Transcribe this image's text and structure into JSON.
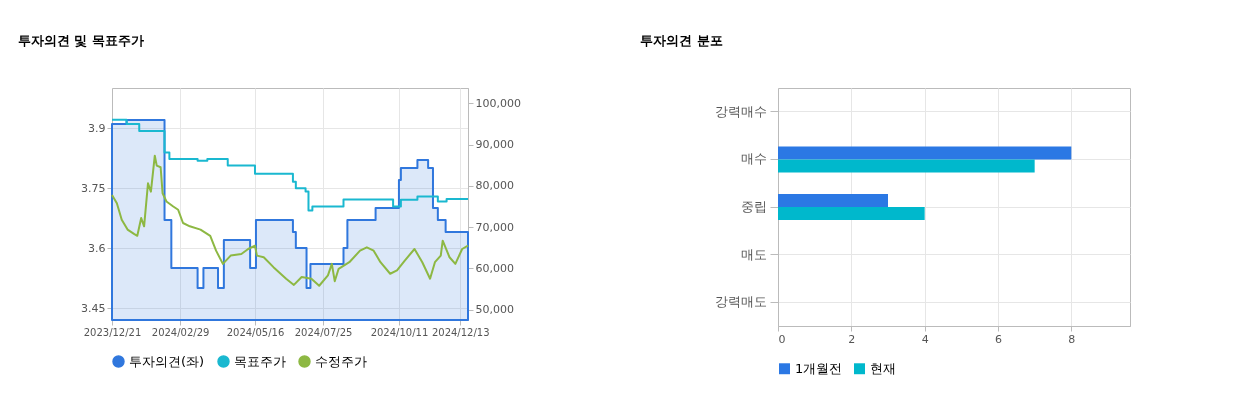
{
  "chart_data": [
    {
      "type": "line",
      "title": "투자의견 및 목표주가",
      "xlim": [
        "2023-12-21",
        "2024-12-21"
      ],
      "xticks": [
        {
          "value": "2023-12-21",
          "label": "2023/12/21"
        },
        {
          "value": "2024-02-29",
          "label": "2024/02/29"
        },
        {
          "value": "2024-05-16",
          "label": "2024/05/16"
        },
        {
          "value": "2024-07-25",
          "label": "2024/07/25"
        },
        {
          "value": "2024-10-11",
          "label": "2024/10/11"
        },
        {
          "value": "2024-12-13",
          "label": "2024/12/13"
        }
      ],
      "ylim": [
        3.42,
        4.0
      ],
      "yticks": [
        3.45,
        3.6,
        3.75,
        3.9
      ],
      "y2lim": [
        47500,
        103700
      ],
      "y2ticks": [
        {
          "value": 50000,
          "label": "50,000"
        },
        {
          "value": 60000,
          "label": "60,000"
        },
        {
          "value": 70000,
          "label": "70,000"
        },
        {
          "value": 80000,
          "label": "80,000"
        },
        {
          "value": 90000,
          "label": "90,000"
        },
        {
          "value": 100000,
          "label": "100,000"
        }
      ],
      "grid": true,
      "legend": "bottom",
      "series": [
        {
          "name": "투자의견(좌)",
          "type": "area",
          "color": "#3077dd",
          "x": [
            "2023-12-21",
            "2024-01-05",
            "2024-02-13",
            "2024-02-20",
            "2024-03-18",
            "2024-03-24",
            "2024-04-08",
            "2024-04-14",
            "2024-05-11",
            "2024-05-17",
            "2024-06-24",
            "2024-06-27",
            "2024-07-08",
            "2024-07-12",
            "2024-08-15",
            "2024-08-19",
            "2024-09-17",
            "2024-10-11",
            "2024-10-13",
            "2024-10-30",
            "2024-11-10",
            "2024-11-15",
            "2024-11-20",
            "2024-11-28",
            "2024-12-21"
          ],
          "values": [
            3.91,
            3.92,
            3.67,
            3.55,
            3.5,
            3.55,
            3.5,
            3.62,
            3.55,
            3.67,
            3.64,
            3.6,
            3.5,
            3.56,
            3.6,
            3.67,
            3.7,
            3.77,
            3.8,
            3.82,
            3.8,
            3.7,
            3.67,
            3.64,
            3.64
          ]
        },
        {
          "name": "목표주가",
          "type": "step",
          "axis": "y2",
          "color": "#1ab8d0",
          "x": [
            "2023-12-21",
            "2024-01-05",
            "2024-01-18",
            "2024-02-13",
            "2024-02-18",
            "2024-03-18",
            "2024-03-28",
            "2024-04-18",
            "2024-05-16",
            "2024-06-24",
            "2024-06-27",
            "2024-07-07",
            "2024-07-10",
            "2024-07-14",
            "2024-08-15",
            "2024-10-05",
            "2024-10-13",
            "2024-10-30",
            "2024-11-20",
            "2024-11-29",
            "2024-12-21"
          ],
          "values": [
            96000,
            95000,
            93300,
            88100,
            86500,
            86100,
            86500,
            84900,
            82900,
            81000,
            79400,
            78600,
            74000,
            75000,
            76700,
            75000,
            76600,
            77400,
            76200,
            76800,
            76800
          ]
        },
        {
          "name": "수정주가",
          "type": "line",
          "axis": "y2",
          "color": "#8db843",
          "x": [
            "2023-12-21",
            "2023-12-26",
            "2023-12-31",
            "2024-01-06",
            "2024-01-13",
            "2024-01-16",
            "2024-01-20",
            "2024-01-23",
            "2024-01-27",
            "2024-01-30",
            "2024-02-03",
            "2024-02-05",
            "2024-02-09",
            "2024-02-11",
            "2024-02-15",
            "2024-02-22",
            "2024-02-27",
            "2024-03-03",
            "2024-03-10",
            "2024-03-21",
            "2024-03-31",
            "2024-04-06",
            "2024-04-13",
            "2024-04-21",
            "2024-05-02",
            "2024-05-09",
            "2024-05-16",
            "2024-05-18",
            "2024-05-25",
            "2024-06-04",
            "2024-06-17",
            "2024-06-25",
            "2024-07-03",
            "2024-07-13",
            "2024-07-21",
            "2024-07-30",
            "2024-08-03",
            "2024-08-06",
            "2024-08-10",
            "2024-08-21",
            "2024-09-01",
            "2024-09-08",
            "2024-09-15",
            "2024-09-22",
            "2024-10-02",
            "2024-10-09",
            "2024-10-17",
            "2024-10-27",
            "2024-11-04",
            "2024-11-12",
            "2024-11-17",
            "2024-11-23",
            "2024-11-25",
            "2024-12-02",
            "2024-12-08",
            "2024-12-15",
            "2024-12-21"
          ],
          "values": [
            77800,
            75800,
            71800,
            69400,
            68300,
            67900,
            72200,
            70200,
            80600,
            78600,
            87300,
            84900,
            84500,
            78200,
            76200,
            75000,
            74200,
            71000,
            70200,
            69400,
            67900,
            64300,
            61100,
            63100,
            63500,
            64700,
            65500,
            63100,
            62700,
            60300,
            57500,
            56000,
            57900,
            57500,
            55800,
            58300,
            61100,
            56900,
            59900,
            61500,
            64300,
            65100,
            64300,
            61500,
            58700,
            59500,
            61900,
            64700,
            61500,
            57500,
            61500,
            63100,
            66700,
            62700,
            61100,
            64700,
            65500
          ]
        }
      ]
    },
    {
      "type": "bar",
      "orientation": "horizontal",
      "title": "투자의견 분포",
      "categories": [
        "강력매수",
        "매수",
        "중립",
        "매도",
        "강력매도"
      ],
      "xlim": [
        0,
        9.6
      ],
      "xticks": [
        0,
        2,
        4,
        6,
        8
      ],
      "grid": true,
      "legend": "bottom",
      "series": [
        {
          "name": "1개월전",
          "color": "#2b78e4",
          "values": [
            0,
            8,
            3,
            0,
            0
          ]
        },
        {
          "name": "현재",
          "color": "#00b8cc",
          "values": [
            0,
            7,
            4,
            0,
            0
          ]
        }
      ]
    }
  ]
}
